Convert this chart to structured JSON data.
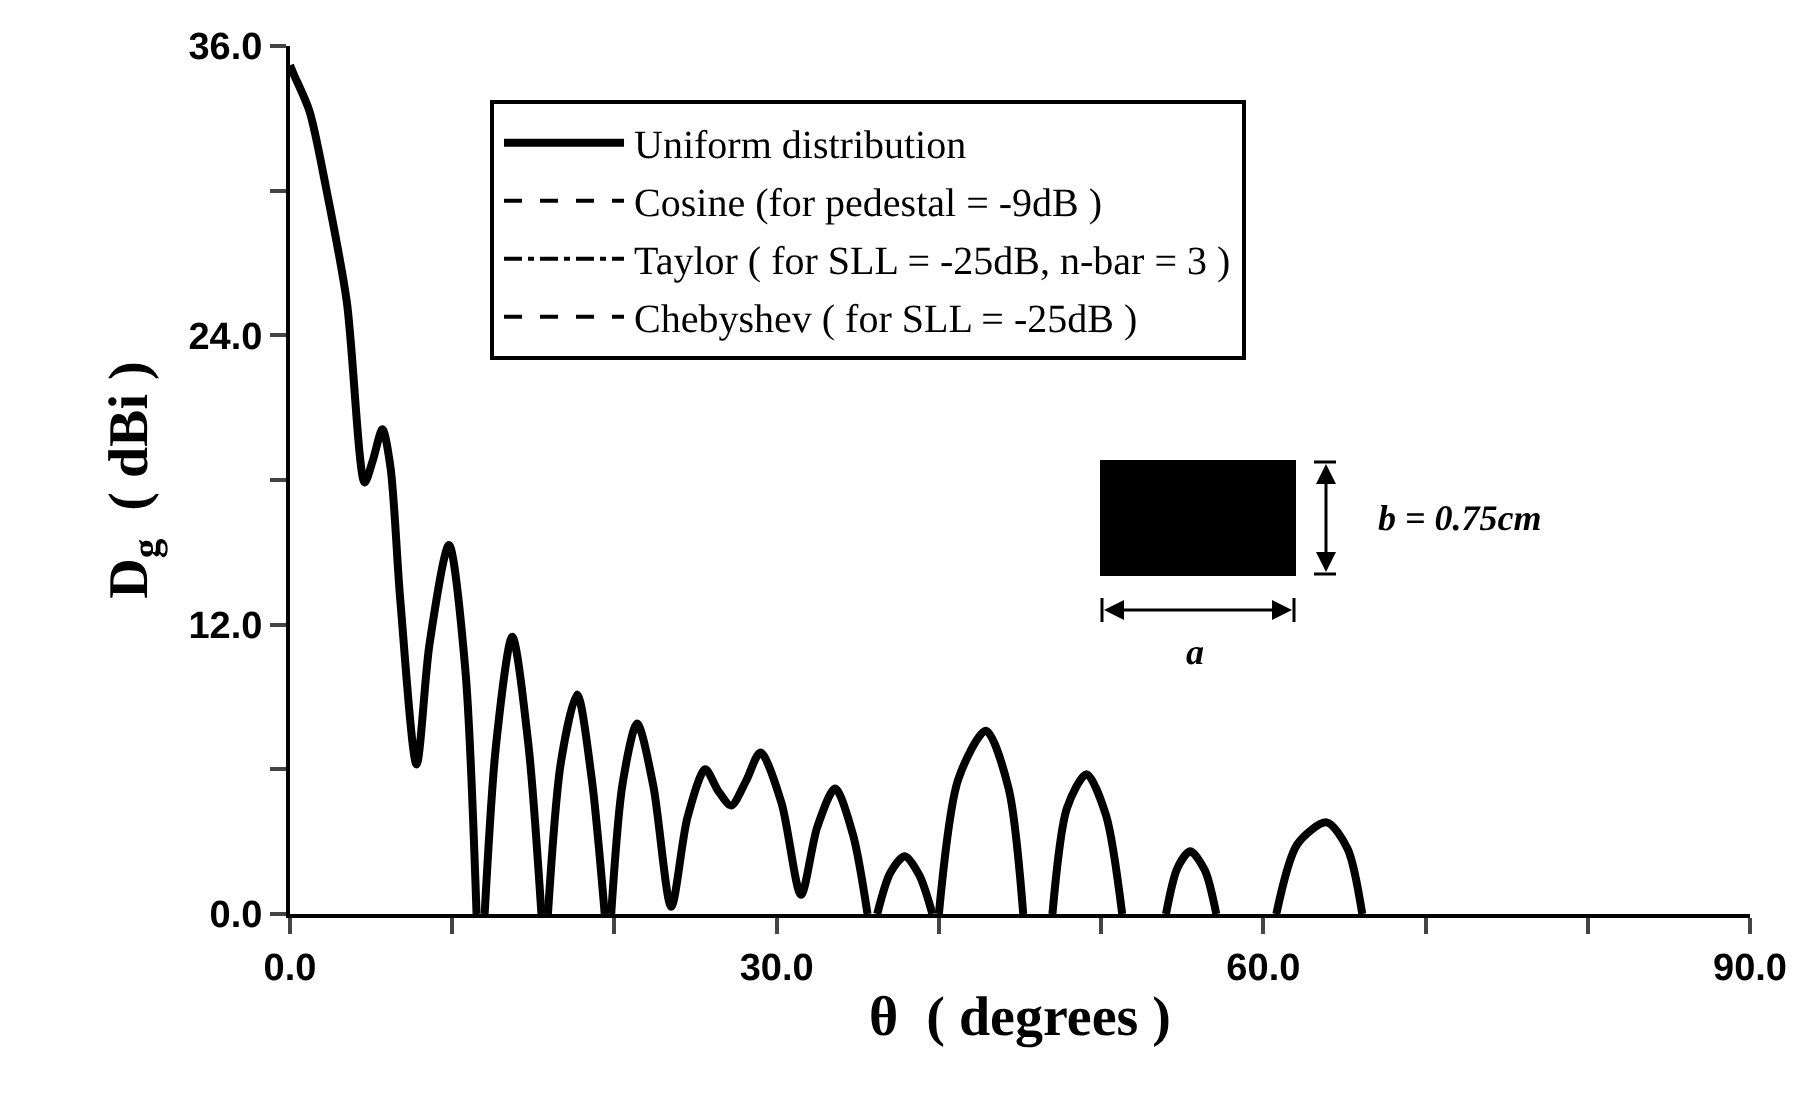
{
  "chart_data": {
    "type": "line",
    "xlabel": "θ  ( degrees )",
    "ylabel": "D$_{g}$  ( dBi )",
    "xlim": [
      0,
      90
    ],
    "xticks": [
      {
        "value": 0,
        "label": "0.0"
      },
      {
        "value": 10,
        "label": null
      },
      {
        "value": 20,
        "label": null
      },
      {
        "value": 30,
        "label": "30.0"
      },
      {
        "value": 40,
        "label": null
      },
      {
        "value": 50,
        "label": null
      },
      {
        "value": 60,
        "label": "60.0"
      },
      {
        "value": 70,
        "label": null
      },
      {
        "value": 80,
        "label": null
      },
      {
        "value": 90,
        "label": "90.0"
      }
    ],
    "ylim": [
      0,
      36
    ],
    "yticks": [
      {
        "value": 0,
        "label": "0.0"
      },
      {
        "value": 6,
        "label": null
      },
      {
        "value": 12,
        "label": "12.0"
      },
      {
        "value": 18,
        "label": null
      },
      {
        "value": 24,
        "label": "24.0"
      },
      {
        "value": 30,
        "label": null
      },
      {
        "value": 36,
        "label": "36.0"
      }
    ],
    "grid": false,
    "legend": "top",
    "marker": "none",
    "annotations": [
      "b = 0.75cm",
      "a"
    ],
    "series": [
      {
        "name": "Uniform distribution",
        "color": "#000000",
        "line_style": "solid",
        "x": [
          0,
          0.25,
          1.2,
          2.2,
          3.5,
          4.6,
          5.1,
          5.7,
          6.2,
          6.8,
          7.8,
          8.6,
          9.8,
          10.8,
          11.5,
          null,
          12.0,
          12.7,
          13.7,
          14.7,
          15.5,
          null,
          15.9,
          16.7,
          17.7,
          18.6,
          19.4,
          null,
          19.8,
          20.5,
          21.4,
          22.4,
          23.5,
          24.5,
          25.6,
          26.4,
          27.2,
          28.1,
          29.0,
          30.3,
          31.5,
          32.5,
          33.6,
          34.7,
          35.6,
          null,
          36.2,
          37.0,
          37.9,
          38.8,
          39.6,
          null,
          40.0,
          41.2,
          42.9,
          44.3,
          45.2,
          null,
          47.0,
          47.9,
          49.1,
          50.3,
          51.3,
          null,
          54.0,
          54.7,
          55.5,
          56.4,
          57.1,
          null,
          60.8,
          62.1,
          63.9,
          65.2,
          66.1
        ],
        "values": [
          35.2,
          34.8,
          33.3,
          30.2,
          25.4,
          17.9,
          18.8,
          20.1,
          18.5,
          13,
          6.2,
          11.2,
          15.3,
          10.2,
          0,
          null,
          0,
          7,
          11.5,
          7,
          0,
          null,
          0,
          6.3,
          9.1,
          5.6,
          0,
          null,
          0,
          5.4,
          7.9,
          5.3,
          0.3,
          4,
          6,
          5.1,
          4.5,
          5.5,
          6.7,
          4.6,
          0.8,
          3.6,
          5.2,
          3.3,
          0,
          null,
          0,
          1.7,
          2.4,
          1.6,
          0,
          null,
          0,
          5.6,
          7.6,
          5.2,
          0,
          null,
          0,
          4.4,
          5.8,
          4.1,
          0,
          null,
          0,
          1.9,
          2.6,
          1.8,
          0,
          null,
          0,
          2.9,
          3.8,
          2.7,
          0
        ]
      },
      {
        "name": "Cosine (for pedestal = -9dB )",
        "color": "#000000",
        "line_style": "dashed"
      },
      {
        "name": "Taylor ( for SLL = -25dB, n-bar = 3 )",
        "color": "#000000",
        "line_style": "dotted"
      },
      {
        "name": "Chebyshev ( for SLL = -25dB )",
        "color": "#000000",
        "line_style": "dashed"
      }
    ]
  }
}
